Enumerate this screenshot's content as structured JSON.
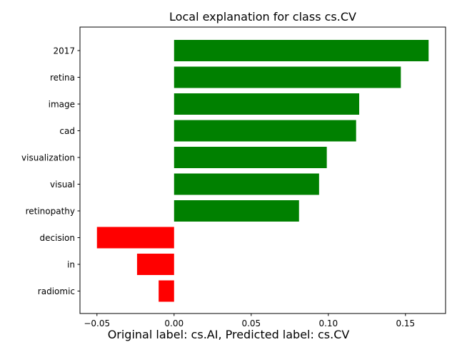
{
  "chart_data": {
    "type": "bar",
    "orientation": "horizontal",
    "title": "Local explanation for class cs.CV",
    "xlabel": "",
    "ylabel": "",
    "categories": [
      "2017",
      "retina",
      "image",
      "cad",
      "visualization",
      "visual",
      "retinopathy",
      "decision",
      "in",
      "radiomic"
    ],
    "values": [
      0.165,
      0.147,
      0.12,
      0.118,
      0.099,
      0.094,
      0.081,
      -0.05,
      -0.024,
      -0.01
    ],
    "xlim": [
      -0.061,
      0.176
    ],
    "xticks": [
      -0.05,
      0.0,
      0.05,
      0.1,
      0.15
    ],
    "xtick_labels": [
      "−0.05",
      "0.00",
      "0.05",
      "0.10",
      "0.15"
    ],
    "grid": false,
    "positive_color": "#008000",
    "negative_color": "#ff0000"
  },
  "caption": "Original label: cs.AI, Predicted label: cs.CV"
}
